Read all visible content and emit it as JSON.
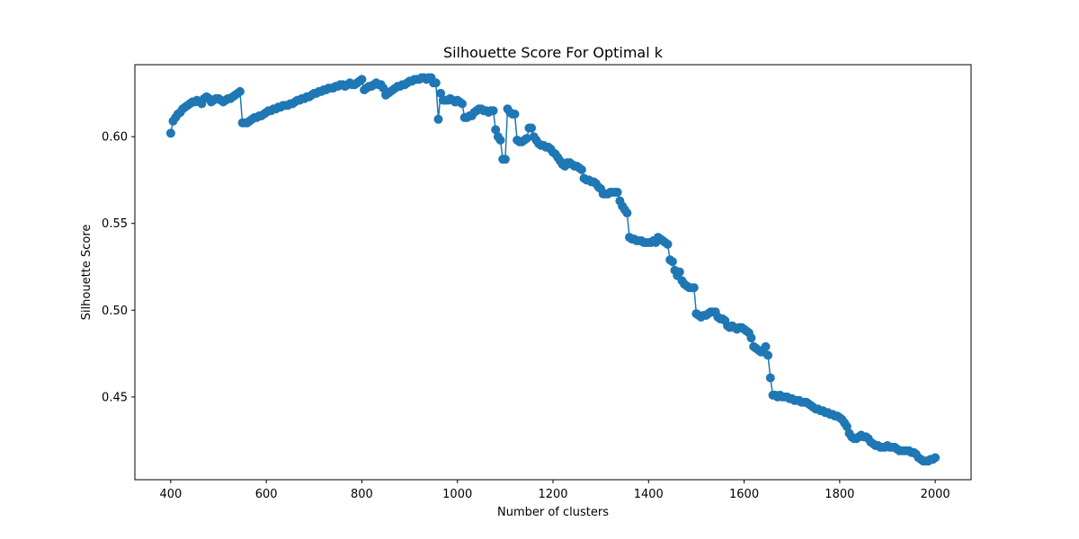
{
  "chart_data": {
    "type": "line",
    "title": "Silhouette Score For Optimal k",
    "xlabel": "Number of clusters",
    "ylabel": "Silhouette Score",
    "xlim": [
      325,
      2075
    ],
    "ylim": [
      0.4023,
      0.6415
    ],
    "xticks": [
      400,
      600,
      800,
      1000,
      1200,
      1400,
      1600,
      1800,
      2000
    ],
    "yticks": [
      0.45,
      0.5,
      0.55,
      0.6
    ],
    "ytick_labels": [
      "0.45",
      "0.50",
      "0.55",
      "0.60"
    ],
    "grid": false,
    "marker": "circle",
    "series_color": "#1f77b4",
    "series": [
      {
        "x": [
          400,
          405,
          410,
          415,
          420,
          425,
          430,
          435,
          440,
          445,
          450,
          455,
          460,
          465,
          470,
          475,
          480,
          485,
          490,
          495,
          500,
          505,
          510,
          515,
          520,
          525,
          530,
          535,
          540,
          545,
          550,
          555,
          560,
          565,
          570,
          575,
          580,
          585,
          590,
          595,
          600,
          605,
          610,
          615,
          620,
          625,
          630,
          635,
          640,
          645,
          650,
          655,
          660,
          665,
          670,
          675,
          680,
          685,
          690,
          695,
          700,
          705,
          710,
          715,
          720,
          725,
          730,
          735,
          740,
          745,
          750,
          755,
          760,
          765,
          770,
          775,
          780,
          785,
          790,
          795,
          800,
          805,
          810,
          815,
          820,
          825,
          830,
          835,
          840,
          845,
          850,
          855,
          860,
          865,
          870,
          875,
          880,
          885,
          890,
          895,
          900,
          905,
          910,
          915,
          920,
          925,
          930,
          935,
          940,
          945,
          950,
          955,
          960,
          965,
          970,
          975,
          980,
          985,
          990,
          995,
          1000,
          1005,
          1010,
          1015,
          1020,
          1025,
          1030,
          1035,
          1040,
          1045,
          1050,
          1055,
          1060,
          1065,
          1070,
          1075,
          1080,
          1085,
          1090,
          1095,
          1100,
          1105,
          1110,
          1115,
          1120,
          1125,
          1130,
          1135,
          1140,
          1145,
          1150,
          1155,
          1160,
          1165,
          1170,
          1175,
          1180,
          1185,
          1190,
          1195,
          1200,
          1205,
          1210,
          1215,
          1220,
          1225,
          1230,
          1235,
          1240,
          1245,
          1250,
          1255,
          1260,
          1265,
          1270,
          1275,
          1280,
          1285,
          1290,
          1295,
          1300,
          1305,
          1310,
          1315,
          1320,
          1325,
          1330,
          1335,
          1340,
          1345,
          1350,
          1355,
          1360,
          1365,
          1370,
          1375,
          1380,
          1385,
          1390,
          1395,
          1400,
          1405,
          1410,
          1415,
          1420,
          1425,
          1430,
          1435,
          1440,
          1445,
          1450,
          1455,
          1460,
          1465,
          1470,
          1475,
          1480,
          1485,
          1490,
          1495,
          1500,
          1505,
          1510,
          1515,
          1520,
          1525,
          1530,
          1535,
          1540,
          1545,
          1550,
          1555,
          1560,
          1565,
          1570,
          1575,
          1580,
          1585,
          1590,
          1595,
          1600,
          1605,
          1610,
          1615,
          1620,
          1625,
          1630,
          1635,
          1640,
          1645,
          1650,
          1655,
          1660,
          1665,
          1670,
          1675,
          1680,
          1685,
          1690,
          1695,
          1700,
          1705,
          1710,
          1715,
          1720,
          1725,
          1730,
          1735,
          1740,
          1745,
          1750,
          1755,
          1760,
          1765,
          1770,
          1775,
          1780,
          1785,
          1790,
          1795,
          1800,
          1805,
          1810,
          1815,
          1820,
          1825,
          1830,
          1835,
          1840,
          1845,
          1850,
          1855,
          1860,
          1865,
          1870,
          1875,
          1880,
          1885,
          1890,
          1895,
          1900,
          1905,
          1910,
          1915,
          1920,
          1925,
          1930,
          1935,
          1940,
          1945,
          1950,
          1955,
          1960,
          1965,
          1970,
          1975,
          1980,
          1985,
          1990,
          1995,
          2000
        ],
        "values": [
          0.602,
          0.609,
          0.611,
          0.613,
          0.614,
          0.616,
          0.617,
          0.618,
          0.619,
          0.62,
          0.62,
          0.621,
          0.62,
          0.619,
          0.622,
          0.623,
          0.622,
          0.62,
          0.621,
          0.622,
          0.622,
          0.621,
          0.62,
          0.621,
          0.622,
          0.622,
          0.623,
          0.624,
          0.625,
          0.626,
          0.608,
          0.608,
          0.608,
          0.609,
          0.61,
          0.611,
          0.611,
          0.612,
          0.612,
          0.613,
          0.614,
          0.615,
          0.615,
          0.616,
          0.616,
          0.617,
          0.617,
          0.618,
          0.618,
          0.618,
          0.619,
          0.619,
          0.62,
          0.621,
          0.621,
          0.622,
          0.622,
          0.623,
          0.623,
          0.624,
          0.625,
          0.625,
          0.626,
          0.626,
          0.627,
          0.627,
          0.628,
          0.628,
          0.628,
          0.629,
          0.629,
          0.63,
          0.63,
          0.629,
          0.63,
          0.631,
          0.63,
          0.63,
          0.631,
          0.632,
          0.633,
          0.627,
          0.628,
          0.629,
          0.629,
          0.63,
          0.631,
          0.63,
          0.63,
          0.628,
          0.624,
          0.625,
          0.626,
          0.627,
          0.628,
          0.629,
          0.629,
          0.63,
          0.63,
          0.631,
          0.632,
          0.632,
          0.633,
          0.633,
          0.633,
          0.634,
          0.634,
          0.633,
          0.634,
          0.634,
          0.631,
          0.631,
          0.61,
          0.625,
          0.621,
          0.621,
          0.621,
          0.622,
          0.621,
          0.62,
          0.621,
          0.62,
          0.619,
          0.611,
          0.611,
          0.612,
          0.612,
          0.614,
          0.615,
          0.616,
          0.616,
          0.615,
          0.615,
          0.614,
          0.615,
          0.615,
          0.604,
          0.6,
          0.598,
          0.587,
          0.587,
          0.616,
          0.614,
          0.613,
          0.613,
          0.598,
          0.597,
          0.597,
          0.598,
          0.599,
          0.605,
          0.605,
          0.6,
          0.598,
          0.596,
          0.595,
          0.595,
          0.594,
          0.594,
          0.593,
          0.591,
          0.59,
          0.588,
          0.586,
          0.584,
          0.583,
          0.585,
          0.585,
          0.584,
          0.583,
          0.583,
          0.582,
          0.581,
          0.576,
          0.575,
          0.575,
          0.574,
          0.574,
          0.573,
          0.571,
          0.57,
          0.567,
          0.567,
          0.567,
          0.568,
          0.568,
          0.568,
          0.568,
          0.563,
          0.56,
          0.558,
          0.556,
          0.542,
          0.541,
          0.541,
          0.54,
          0.54,
          0.54,
          0.539,
          0.539,
          0.539,
          0.539,
          0.54,
          0.539,
          0.542,
          0.541,
          0.54,
          0.539,
          0.538,
          0.529,
          0.528,
          0.523,
          0.52,
          0.522,
          0.517,
          0.515,
          0.514,
          0.513,
          0.513,
          0.513,
          0.498,
          0.497,
          0.496,
          0.497,
          0.497,
          0.498,
          0.499,
          0.499,
          0.499,
          0.496,
          0.495,
          0.495,
          0.494,
          0.491,
          0.49,
          0.491,
          0.49,
          0.489,
          0.49,
          0.49,
          0.489,
          0.488,
          0.487,
          0.484,
          0.479,
          0.478,
          0.477,
          0.476,
          0.476,
          0.479,
          0.474,
          0.461,
          0.451,
          0.451,
          0.45,
          0.451,
          0.45,
          0.45,
          0.45,
          0.449,
          0.449,
          0.448,
          0.448,
          0.448,
          0.447,
          0.447,
          0.447,
          0.446,
          0.445,
          0.444,
          0.443,
          0.443,
          0.442,
          0.442,
          0.441,
          0.441,
          0.44,
          0.44,
          0.439,
          0.439,
          0.438,
          0.437,
          0.435,
          0.433,
          0.429,
          0.427,
          0.426,
          0.426,
          0.427,
          0.428,
          0.427,
          0.427,
          0.426,
          0.424,
          0.423,
          0.422,
          0.422,
          0.421,
          0.421,
          0.421,
          0.422,
          0.421,
          0.421,
          0.421,
          0.42,
          0.419,
          0.419,
          0.419,
          0.419,
          0.419,
          0.418,
          0.418,
          0.417,
          0.415,
          0.414,
          0.413,
          0.413,
          0.413,
          0.414,
          0.414,
          0.415
        ]
      }
    ]
  }
}
